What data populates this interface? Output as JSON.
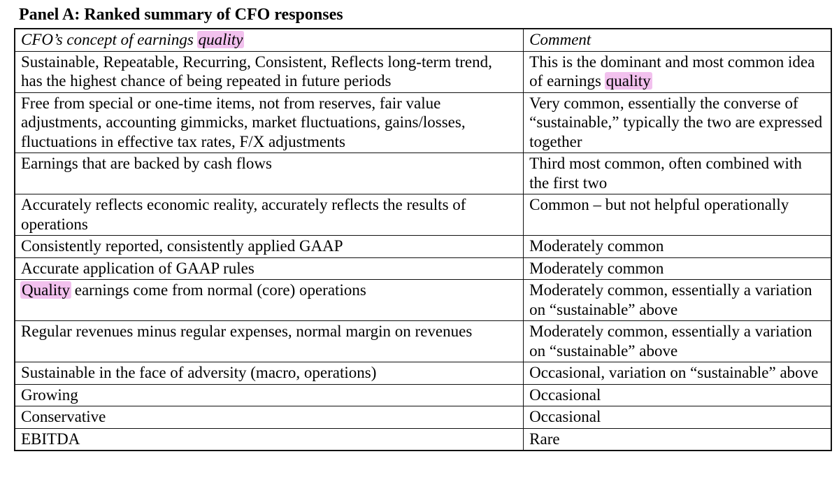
{
  "panel": {
    "title": "Panel A: Ranked summary of CFO responses"
  },
  "colors": {
    "highlight": "#f2c1ee",
    "border": "#111111",
    "text": "#000000"
  },
  "table": {
    "header": {
      "concept": [
        {
          "t": "CFO’s concept of earnings "
        },
        {
          "t": "quality",
          "h": true
        }
      ],
      "comment": [
        {
          "t": "Comment"
        }
      ]
    },
    "rows": [
      {
        "concept": [
          {
            "t": "Sustainable, Repeatable, Recurring, Consistent, Reflects long-term trend, has the highest chance of being repeated in future periods"
          }
        ],
        "comment": [
          {
            "t": "This is the dominant and most common idea of earnings "
          },
          {
            "t": "quality",
            "h": true
          }
        ]
      },
      {
        "concept": [
          {
            "t": "Free from special or one-time items, not from reserves, fair value adjustments, accounting gimmicks, market fluctuations, gains/losses, fluctuations in effective tax rates, F/X adjustments"
          }
        ],
        "comment": [
          {
            "t": "Very common, essentially the converse of “sustainable,” typically the two are expressed together"
          }
        ]
      },
      {
        "concept": [
          {
            "t": "Earnings that are backed by cash flows"
          }
        ],
        "comment": [
          {
            "t": "Third most common, often combined with the first two"
          }
        ]
      },
      {
        "concept": [
          {
            "t": "Accurately reflects economic reality, accurately reflects the results of operations"
          }
        ],
        "comment": [
          {
            "t": "Common – but not helpful operationally"
          }
        ]
      },
      {
        "concept": [
          {
            "t": "Consistently reported, consistently applied GAAP"
          }
        ],
        "comment": [
          {
            "t": "Moderately common"
          }
        ]
      },
      {
        "concept": [
          {
            "t": "Accurate application of GAAP rules"
          }
        ],
        "comment": [
          {
            "t": "Moderately common"
          }
        ]
      },
      {
        "concept": [
          {
            "t": "Quality",
            "h": true
          },
          {
            "t": " earnings come from normal (core) operations"
          }
        ],
        "comment": [
          {
            "t": "Moderately common, essentially a variation on “sustainable” above"
          }
        ]
      },
      {
        "concept": [
          {
            "t": "Regular revenues minus regular expenses, normal margin on revenues"
          }
        ],
        "comment": [
          {
            "t": "Moderately common, essentially a variation on “sustainable” above"
          }
        ]
      },
      {
        "concept": [
          {
            "t": "Sustainable in the face of adversity (macro, operations)"
          }
        ],
        "comment": [
          {
            "t": "Occasional, variation on “sustainable” above"
          }
        ]
      },
      {
        "concept": [
          {
            "t": "Growing"
          }
        ],
        "comment": [
          {
            "t": "Occasional"
          }
        ]
      },
      {
        "concept": [
          {
            "t": "Conservative"
          }
        ],
        "comment": [
          {
            "t": "Occasional"
          }
        ]
      },
      {
        "concept": [
          {
            "t": "EBITDA"
          }
        ],
        "comment": [
          {
            "t": "Rare"
          }
        ]
      }
    ]
  }
}
